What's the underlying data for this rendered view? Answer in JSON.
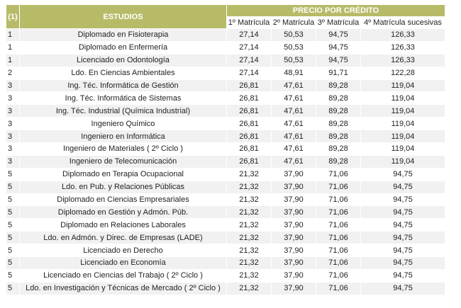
{
  "header": {
    "col_index": "(1)",
    "col_estudios": "ESTUDIOS",
    "price_group": "PRECIO POR CRÉDITO",
    "m1": "1º Matrícula",
    "m2": "2º Matrícula",
    "m3": "3º Matrícula",
    "m4": "4º Matrícula sucesivas"
  },
  "rows": [
    {
      "g": "1",
      "name": "Diplomado en Fisioterapia",
      "p1": "27,14",
      "p2": "50,53",
      "p3": "94,75",
      "p4": "126,33"
    },
    {
      "g": "1",
      "name": "Diplomado en Enfermería",
      "p1": "27,14",
      "p2": "50,53",
      "p3": "94,75",
      "p4": "126,33"
    },
    {
      "g": "1",
      "name": "Licenciado en Odontología",
      "p1": "27,14",
      "p2": "50,53",
      "p3": "94,75",
      "p4": "126,33"
    },
    {
      "g": "2",
      "name": "Ldo. En Ciencias Ambientales",
      "p1": "27,14",
      "p2": "48,91",
      "p3": "91,71",
      "p4": "122,28"
    },
    {
      "g": "3",
      "name": "Ing. Téc. Informática de Gestión",
      "p1": "26,81",
      "p2": "47,61",
      "p3": "89,28",
      "p4": "119,04"
    },
    {
      "g": "3",
      "name": "Ing. Téc. Informática de Sistemas",
      "p1": "26,81",
      "p2": "47,61",
      "p3": "89,28",
      "p4": "119,04"
    },
    {
      "g": "3",
      "name": "Ing. Téc. Industrial (Química Industrial)",
      "p1": "26,81",
      "p2": "47,61",
      "p3": "89,28",
      "p4": "119,04"
    },
    {
      "g": "3",
      "name": "Ingeniero Químico",
      "p1": "26,81",
      "p2": "47,61",
      "p3": "89,28",
      "p4": "119,04"
    },
    {
      "g": "3",
      "name": "Ingeniero en Informática",
      "p1": "26,81",
      "p2": "47,61",
      "p3": "89,28",
      "p4": "119,04"
    },
    {
      "g": "3",
      "name": "Ingeniero de Materiales ( 2º Ciclo )",
      "p1": "26,81",
      "p2": "47,61",
      "p3": "89,28",
      "p4": "119,04"
    },
    {
      "g": "3",
      "name": "Ingeniero de Telecomunicación",
      "p1": "26,81",
      "p2": "47,61",
      "p3": "89,28",
      "p4": "119,04"
    },
    {
      "g": "5",
      "name": "Diplomado en Terapia Ocupacional",
      "p1": "21,32",
      "p2": "37,90",
      "p3": "71,06",
      "p4": "94,75"
    },
    {
      "g": "5",
      "name": "Ldo. en Pub. y Relaciones Públicas",
      "p1": "21,32",
      "p2": "37,90",
      "p3": "71,06",
      "p4": "94,75"
    },
    {
      "g": "5",
      "name": "Diplomado en Ciencias Empresariales",
      "p1": "21,32",
      "p2": "37,90",
      "p3": "71,06",
      "p4": "94,75"
    },
    {
      "g": "5",
      "name": "Diplomado en Gestión y Admón. Púb.",
      "p1": "21,32",
      "p2": "37,90",
      "p3": "71,06",
      "p4": "94,75"
    },
    {
      "g": "5",
      "name": "Diplomado en Relaciones Laborales",
      "p1": "21,32",
      "p2": "37,90",
      "p3": "71,06",
      "p4": "94,75"
    },
    {
      "g": "5",
      "name": "Ldo. en Admón. y Direc. de Empresas (LADE)",
      "p1": "21,32",
      "p2": "37,90",
      "p3": "71,06",
      "p4": "94,75"
    },
    {
      "g": "5",
      "name": "Licenciado en Derecho",
      "p1": "21,32",
      "p2": "37,90",
      "p3": "71,06",
      "p4": "94,75"
    },
    {
      "g": "5",
      "name": "Licenciado en Economía",
      "p1": "21,32",
      "p2": "37,90",
      "p3": "71,06",
      "p4": "94,75"
    },
    {
      "g": "5",
      "name": "Licenciado en Ciencias del Trabajo ( 2º Ciclo )",
      "p1": "21,32",
      "p2": "37,90",
      "p3": "71,06",
      "p4": "94,75"
    },
    {
      "g": "5",
      "name": "Ldo. en Investigación y Técnicas de Mercado ( 2º Ciclo )",
      "p1": "21,32",
      "p2": "37,90",
      "p3": "71,06",
      "p4": "94,75"
    }
  ],
  "colors": {
    "header_bg": "#b7bb68",
    "row_alt_bg": "#f1f1f1"
  }
}
